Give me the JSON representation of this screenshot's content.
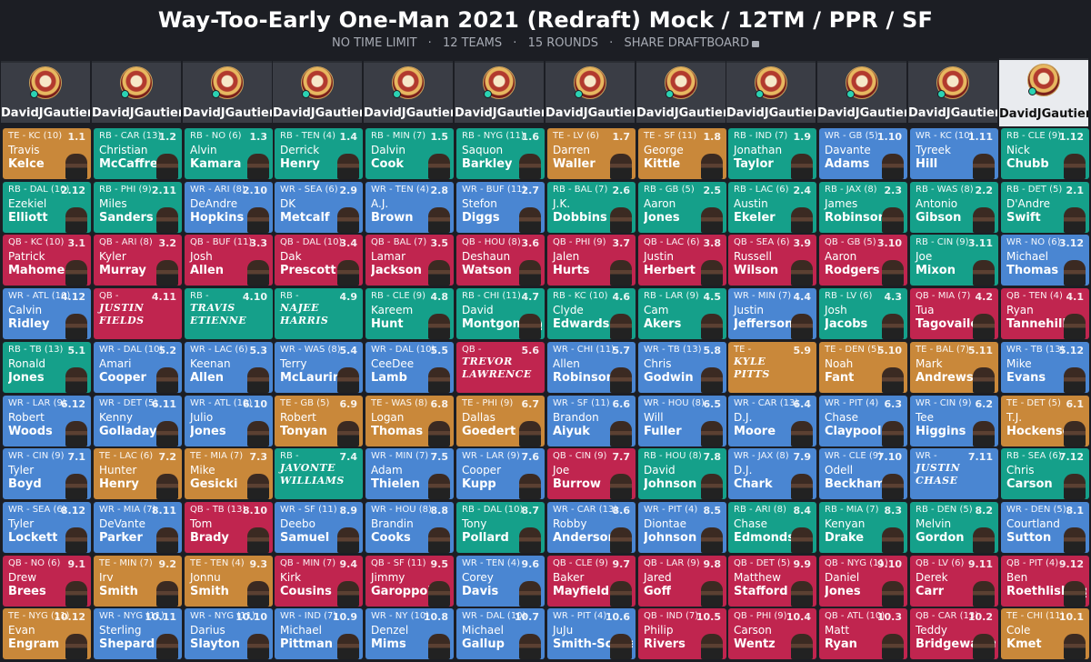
{
  "header": {
    "title": "Way-Too-Early One-Man 2021 (Redraft) Mock / 12TM / PPR / SF",
    "meta": [
      "NO TIME LIMIT",
      "12 TEAMS",
      "15 ROUNDS"
    ],
    "share": "SHARE DRAFTBOARD",
    "separator": "·"
  },
  "teams": [
    "DavidJGautieri",
    "DavidJGautieri",
    "DavidJGautieri",
    "DavidJGautieri",
    "DavidJGautieri",
    "DavidJGautieri",
    "DavidJGautieri",
    "DavidJGautieri",
    "DavidJGautieri",
    "DavidJGautieri",
    "DavidJGautieri",
    "DavidJGautieri"
  ],
  "active_team_index": 11,
  "colors": {
    "QB": "#c0254f",
    "RB": "#15a08a",
    "WR": "#4a86d2",
    "TE": "#c9883a"
  },
  "rows": [
    [
      {
        "pos": "TE",
        "tag": "TE - KC (10)",
        "num": "1.1",
        "first": "Travis",
        "last": "Kelce"
      },
      {
        "pos": "RB",
        "tag": "RB - CAR (13)",
        "num": "1.2",
        "first": "Christian",
        "last": "McCaffrey"
      },
      {
        "pos": "RB",
        "tag": "RB - NO (6)",
        "num": "1.3",
        "first": "Alvin",
        "last": "Kamara"
      },
      {
        "pos": "RB",
        "tag": "RB - TEN (4)",
        "num": "1.4",
        "first": "Derrick",
        "last": "Henry"
      },
      {
        "pos": "RB",
        "tag": "RB - MIN (7)",
        "num": "1.5",
        "first": "Dalvin",
        "last": "Cook"
      },
      {
        "pos": "RB",
        "tag": "RB - NYG (11)",
        "num": "1.6",
        "first": "Saquon",
        "last": "Barkley"
      },
      {
        "pos": "TE",
        "tag": "TE - LV (6)",
        "num": "1.7",
        "first": "Darren",
        "last": "Waller"
      },
      {
        "pos": "TE",
        "tag": "TE - SF (11)",
        "num": "1.8",
        "first": "George",
        "last": "Kittle"
      },
      {
        "pos": "RB",
        "tag": "RB - IND (7)",
        "num": "1.9",
        "first": "Jonathan",
        "last": "Taylor"
      },
      {
        "pos": "WR",
        "tag": "WR - GB (5)",
        "num": "1.10",
        "first": "Davante",
        "last": "Adams"
      },
      {
        "pos": "WR",
        "tag": "WR - KC (10)",
        "num": "1.11",
        "first": "Tyreek",
        "last": "Hill"
      },
      {
        "pos": "RB",
        "tag": "RB - CLE (9)",
        "num": "1.12",
        "first": "Nick",
        "last": "Chubb"
      }
    ],
    [
      {
        "pos": "RB",
        "tag": "RB - DAL (10)",
        "num": "2.12",
        "first": "Ezekiel",
        "last": "Elliott"
      },
      {
        "pos": "RB",
        "tag": "RB - PHI (9)",
        "num": "2.11",
        "first": "Miles",
        "last": "Sanders"
      },
      {
        "pos": "WR",
        "tag": "WR - ARI (8)",
        "num": "2.10",
        "first": "DeAndre",
        "last": "Hopkins"
      },
      {
        "pos": "WR",
        "tag": "WR - SEA (6)",
        "num": "2.9",
        "first": "DK",
        "last": "Metcalf"
      },
      {
        "pos": "WR",
        "tag": "WR - TEN (4)",
        "num": "2.8",
        "first": "A.J.",
        "last": "Brown"
      },
      {
        "pos": "WR",
        "tag": "WR - BUF (11)",
        "num": "2.7",
        "first": "Stefon",
        "last": "Diggs"
      },
      {
        "pos": "RB",
        "tag": "RB - BAL (7)",
        "num": "2.6",
        "first": "J.K.",
        "last": "Dobbins"
      },
      {
        "pos": "RB",
        "tag": "RB - GB (5)",
        "num": "2.5",
        "first": "Aaron",
        "last": "Jones"
      },
      {
        "pos": "RB",
        "tag": "RB - LAC (6)",
        "num": "2.4",
        "first": "Austin",
        "last": "Ekeler"
      },
      {
        "pos": "RB",
        "tag": "RB - JAX (8)",
        "num": "2.3",
        "first": "James",
        "last": "Robinson"
      },
      {
        "pos": "RB",
        "tag": "RB - WAS (8)",
        "num": "2.2",
        "first": "Antonio",
        "last": "Gibson"
      },
      {
        "pos": "RB",
        "tag": "RB - DET (5)",
        "num": "2.1",
        "first": "D'Andre",
        "last": "Swift"
      }
    ],
    [
      {
        "pos": "QB",
        "tag": "QB - KC (10)",
        "num": "3.1",
        "first": "Patrick",
        "last": "Mahomes"
      },
      {
        "pos": "QB",
        "tag": "QB - ARI (8)",
        "num": "3.2",
        "first": "Kyler",
        "last": "Murray"
      },
      {
        "pos": "QB",
        "tag": "QB - BUF (11)",
        "num": "3.3",
        "first": "Josh",
        "last": "Allen"
      },
      {
        "pos": "QB",
        "tag": "QB - DAL (10)",
        "num": "3.4",
        "first": "Dak",
        "last": "Prescott"
      },
      {
        "pos": "QB",
        "tag": "QB - BAL (7)",
        "num": "3.5",
        "first": "Lamar",
        "last": "Jackson"
      },
      {
        "pos": "QB",
        "tag": "QB - HOU (8)",
        "num": "3.6",
        "first": "Deshaun",
        "last": "Watson"
      },
      {
        "pos": "QB",
        "tag": "QB - PHI (9)",
        "num": "3.7",
        "first": "Jalen",
        "last": "Hurts"
      },
      {
        "pos": "QB",
        "tag": "QB - LAC (6)",
        "num": "3.8",
        "first": "Justin",
        "last": "Herbert"
      },
      {
        "pos": "QB",
        "tag": "QB - SEA (6)",
        "num": "3.9",
        "first": "Russell",
        "last": "Wilson"
      },
      {
        "pos": "QB",
        "tag": "QB - GB (5)",
        "num": "3.10",
        "first": "Aaron",
        "last": "Rodgers"
      },
      {
        "pos": "RB",
        "tag": "RB - CIN (9)",
        "num": "3.11",
        "first": "Joe",
        "last": "Mixon"
      },
      {
        "pos": "WR",
        "tag": "WR - NO (6)",
        "num": "3.12",
        "first": "Michael",
        "last": "Thomas"
      }
    ],
    [
      {
        "pos": "WR",
        "tag": "WR - ATL (10)",
        "num": "4.12",
        "first": "Calvin",
        "last": "Ridley"
      },
      {
        "pos": "QB",
        "tag": "QB -",
        "num": "4.11",
        "first": "JUSTIN",
        "last": "FIELDS",
        "rookie": true
      },
      {
        "pos": "RB",
        "tag": "RB -",
        "num": "4.10",
        "first": "TRAVIS",
        "last": "ETIENNE",
        "rookie": true
      },
      {
        "pos": "RB",
        "tag": "RB -",
        "num": "4.9",
        "first": "NAJEE",
        "last": "HARRIS",
        "rookie": true
      },
      {
        "pos": "RB",
        "tag": "RB - CLE (9)",
        "num": "4.8",
        "first": "Kareem",
        "last": "Hunt"
      },
      {
        "pos": "RB",
        "tag": "RB - CHI (11)",
        "num": "4.7",
        "first": "David",
        "last": "Montgomery"
      },
      {
        "pos": "RB",
        "tag": "RB - KC (10)",
        "num": "4.6",
        "first": "Clyde",
        "last": "Edwards-Helaire"
      },
      {
        "pos": "RB",
        "tag": "RB - LAR (9)",
        "num": "4.5",
        "first": "Cam",
        "last": "Akers"
      },
      {
        "pos": "WR",
        "tag": "WR - MIN (7)",
        "num": "4.4",
        "first": "Justin",
        "last": "Jefferson"
      },
      {
        "pos": "RB",
        "tag": "RB - LV (6)",
        "num": "4.3",
        "first": "Josh",
        "last": "Jacobs"
      },
      {
        "pos": "QB",
        "tag": "QB - MIA (7)",
        "num": "4.2",
        "first": "Tua",
        "last": "Tagovailoa"
      },
      {
        "pos": "QB",
        "tag": "QB - TEN (4)",
        "num": "4.1",
        "first": "Ryan",
        "last": "Tannehill"
      }
    ],
    [
      {
        "pos": "RB",
        "tag": "RB - TB (13)",
        "num": "5.1",
        "first": "Ronald",
        "last": "Jones"
      },
      {
        "pos": "WR",
        "tag": "WR - DAL (10)",
        "num": "5.2",
        "first": "Amari",
        "last": "Cooper"
      },
      {
        "pos": "WR",
        "tag": "WR - LAC (6)",
        "num": "5.3",
        "first": "Keenan",
        "last": "Allen"
      },
      {
        "pos": "WR",
        "tag": "WR - WAS (8)",
        "num": "5.4",
        "first": "Terry",
        "last": "McLaurin"
      },
      {
        "pos": "WR",
        "tag": "WR - DAL (10)",
        "num": "5.5",
        "first": "CeeDee",
        "last": "Lamb"
      },
      {
        "pos": "QB",
        "tag": "QB -",
        "num": "5.6",
        "first": "TREVOR",
        "last": "LAWRENCE",
        "rookie": true
      },
      {
        "pos": "WR",
        "tag": "WR - CHI (11)",
        "num": "5.7",
        "first": "Allen",
        "last": "Robinson"
      },
      {
        "pos": "WR",
        "tag": "WR - TB (13)",
        "num": "5.8",
        "first": "Chris",
        "last": "Godwin"
      },
      {
        "pos": "TE",
        "tag": "TE -",
        "num": "5.9",
        "first": "KYLE",
        "last": "PITTS",
        "rookie": true
      },
      {
        "pos": "TE",
        "tag": "TE - DEN (5)",
        "num": "5.10",
        "first": "Noah",
        "last": "Fant"
      },
      {
        "pos": "TE",
        "tag": "TE - BAL (7)",
        "num": "5.11",
        "first": "Mark",
        "last": "Andrews"
      },
      {
        "pos": "WR",
        "tag": "WR - TB (13)",
        "num": "5.12",
        "first": "Mike",
        "last": "Evans"
      }
    ],
    [
      {
        "pos": "WR",
        "tag": "WR - LAR (9)",
        "num": "6.12",
        "first": "Robert",
        "last": "Woods"
      },
      {
        "pos": "WR",
        "tag": "WR - DET (5)",
        "num": "6.11",
        "first": "Kenny",
        "last": "Golladay"
      },
      {
        "pos": "WR",
        "tag": "WR - ATL (10)",
        "num": "6.10",
        "first": "Julio",
        "last": "Jones"
      },
      {
        "pos": "TE",
        "tag": "TE - GB (5)",
        "num": "6.9",
        "first": "Robert",
        "last": "Tonyan"
      },
      {
        "pos": "TE",
        "tag": "TE - WAS (8)",
        "num": "6.8",
        "first": "Logan",
        "last": "Thomas"
      },
      {
        "pos": "TE",
        "tag": "TE - PHI (9)",
        "num": "6.7",
        "first": "Dallas",
        "last": "Goedert"
      },
      {
        "pos": "WR",
        "tag": "WR - SF (11)",
        "num": "6.6",
        "first": "Brandon",
        "last": "Aiyuk"
      },
      {
        "pos": "WR",
        "tag": "WR - HOU (8)",
        "num": "6.5",
        "first": "Will",
        "last": "Fuller"
      },
      {
        "pos": "WR",
        "tag": "WR - CAR (13)",
        "num": "6.4",
        "first": "D.J.",
        "last": "Moore"
      },
      {
        "pos": "WR",
        "tag": "WR - PIT (4)",
        "num": "6.3",
        "first": "Chase",
        "last": "Claypool"
      },
      {
        "pos": "WR",
        "tag": "WR - CIN (9)",
        "num": "6.2",
        "first": "Tee",
        "last": "Higgins"
      },
      {
        "pos": "TE",
        "tag": "TE - DET (5)",
        "num": "6.1",
        "first": "T.J.",
        "last": "Hockenson"
      }
    ],
    [
      {
        "pos": "WR",
        "tag": "WR - CIN (9)",
        "num": "7.1",
        "first": "Tyler",
        "last": "Boyd"
      },
      {
        "pos": "TE",
        "tag": "TE - LAC (6)",
        "num": "7.2",
        "first": "Hunter",
        "last": "Henry"
      },
      {
        "pos": "TE",
        "tag": "TE - MIA (7)",
        "num": "7.3",
        "first": "Mike",
        "last": "Gesicki"
      },
      {
        "pos": "RB",
        "tag": "RB -",
        "num": "7.4",
        "first": "JAVONTE",
        "last": "WILLIAMS",
        "rookie": true
      },
      {
        "pos": "WR",
        "tag": "WR - MIN (7)",
        "num": "7.5",
        "first": "Adam",
        "last": "Thielen"
      },
      {
        "pos": "WR",
        "tag": "WR - LAR (9)",
        "num": "7.6",
        "first": "Cooper",
        "last": "Kupp"
      },
      {
        "pos": "QB",
        "tag": "QB - CIN (9)",
        "num": "7.7",
        "first": "Joe",
        "last": "Burrow"
      },
      {
        "pos": "RB",
        "tag": "RB - HOU (8)",
        "num": "7.8",
        "first": "David",
        "last": "Johnson"
      },
      {
        "pos": "WR",
        "tag": "WR - JAX (8)",
        "num": "7.9",
        "first": "D.J.",
        "last": "Chark"
      },
      {
        "pos": "WR",
        "tag": "WR - CLE (9)",
        "num": "7.10",
        "first": "Odell",
        "last": "Beckham"
      },
      {
        "pos": "WR",
        "tag": "WR -",
        "num": "7.11",
        "first": "JUSTIN",
        "last": "CHASE",
        "rookie": true
      },
      {
        "pos": "RB",
        "tag": "RB - SEA (6)",
        "num": "7.12",
        "first": "Chris",
        "last": "Carson"
      }
    ],
    [
      {
        "pos": "WR",
        "tag": "WR - SEA (6)",
        "num": "8.12",
        "first": "Tyler",
        "last": "Lockett"
      },
      {
        "pos": "WR",
        "tag": "WR - MIA (7)",
        "num": "8.11",
        "first": "DeVante",
        "last": "Parker"
      },
      {
        "pos": "QB",
        "tag": "QB - TB (13)",
        "num": "8.10",
        "first": "Tom",
        "last": "Brady"
      },
      {
        "pos": "WR",
        "tag": "WR - SF (11)",
        "num": "8.9",
        "first": "Deebo",
        "last": "Samuel"
      },
      {
        "pos": "WR",
        "tag": "WR - HOU (8)",
        "num": "8.8",
        "first": "Brandin",
        "last": "Cooks"
      },
      {
        "pos": "RB",
        "tag": "RB - DAL (10)",
        "num": "8.7",
        "first": "Tony",
        "last": "Pollard"
      },
      {
        "pos": "WR",
        "tag": "WR - CAR (13)",
        "num": "8.6",
        "first": "Robby",
        "last": "Anderson"
      },
      {
        "pos": "WR",
        "tag": "WR - PIT (4)",
        "num": "8.5",
        "first": "Diontae",
        "last": "Johnson"
      },
      {
        "pos": "RB",
        "tag": "RB - ARI (8)",
        "num": "8.4",
        "first": "Chase",
        "last": "Edmonds"
      },
      {
        "pos": "RB",
        "tag": "RB - MIA (7)",
        "num": "8.3",
        "first": "Kenyan",
        "last": "Drake"
      },
      {
        "pos": "RB",
        "tag": "RB - DEN (5)",
        "num": "8.2",
        "first": "Melvin",
        "last": "Gordon"
      },
      {
        "pos": "WR",
        "tag": "WR - DEN (5)",
        "num": "8.1",
        "first": "Courtland",
        "last": "Sutton"
      }
    ],
    [
      {
        "pos": "QB",
        "tag": "QB - NO (6)",
        "num": "9.1",
        "first": "Drew",
        "last": "Brees"
      },
      {
        "pos": "TE",
        "tag": "TE - MIN (7)",
        "num": "9.2",
        "first": "Irv",
        "last": "Smith"
      },
      {
        "pos": "TE",
        "tag": "TE - TEN (4)",
        "num": "9.3",
        "first": "Jonnu",
        "last": "Smith"
      },
      {
        "pos": "QB",
        "tag": "QB - MIN (7)",
        "num": "9.4",
        "first": "Kirk",
        "last": "Cousins"
      },
      {
        "pos": "QB",
        "tag": "QB - SF (11)",
        "num": "9.5",
        "first": "Jimmy",
        "last": "Garoppolo"
      },
      {
        "pos": "WR",
        "tag": "WR - TEN (4)",
        "num": "9.6",
        "first": "Corey",
        "last": "Davis"
      },
      {
        "pos": "QB",
        "tag": "QB - CLE (9)",
        "num": "9.7",
        "first": "Baker",
        "last": "Mayfield"
      },
      {
        "pos": "QB",
        "tag": "QB - LAR (9)",
        "num": "9.8",
        "first": "Jared",
        "last": "Goff"
      },
      {
        "pos": "QB",
        "tag": "QB - DET (5)",
        "num": "9.9",
        "first": "Matthew",
        "last": "Stafford"
      },
      {
        "pos": "QB",
        "tag": "QB - NYG (11)",
        "num": "9.10",
        "first": "Daniel",
        "last": "Jones"
      },
      {
        "pos": "QB",
        "tag": "QB - LV (6)",
        "num": "9.11",
        "first": "Derek",
        "last": "Carr"
      },
      {
        "pos": "QB",
        "tag": "QB - PIT (4)",
        "num": "9.12",
        "first": "Ben",
        "last": "Roethlisberger"
      }
    ],
    [
      {
        "pos": "TE",
        "tag": "TE - NYG (11)",
        "num": "10.12",
        "first": "Evan",
        "last": "Engram"
      },
      {
        "pos": "WR",
        "tag": "WR - NYG (11)",
        "num": "10.11",
        "first": "Sterling",
        "last": "Shepard"
      },
      {
        "pos": "WR",
        "tag": "WR - NYG (11)",
        "num": "10.10",
        "first": "Darius",
        "last": "Slayton"
      },
      {
        "pos": "WR",
        "tag": "WR - IND (7)",
        "num": "10.9",
        "first": "Michael",
        "last": "Pittman"
      },
      {
        "pos": "WR",
        "tag": "WR - NY (10)",
        "num": "10.8",
        "first": "Denzel",
        "last": "Mims"
      },
      {
        "pos": "WR",
        "tag": "WR - DAL (10)",
        "num": "10.7",
        "first": "Michael",
        "last": "Gallup"
      },
      {
        "pos": "WR",
        "tag": "WR - PIT (4)",
        "num": "10.6",
        "first": "JuJu",
        "last": "Smith-Schuster"
      },
      {
        "pos": "QB",
        "tag": "QB - IND (7)",
        "num": "10.5",
        "first": "Philip",
        "last": "Rivers"
      },
      {
        "pos": "QB",
        "tag": "QB - PHI (9)",
        "num": "10.4",
        "first": "Carson",
        "last": "Wentz"
      },
      {
        "pos": "QB",
        "tag": "QB - ATL (10)",
        "num": "10.3",
        "first": "Matt",
        "last": "Ryan"
      },
      {
        "pos": "QB",
        "tag": "QB - CAR (13)",
        "num": "10.2",
        "first": "Teddy",
        "last": "Bridgewater"
      },
      {
        "pos": "TE",
        "tag": "TE - CHI (11)",
        "num": "10.1",
        "first": "Cole",
        "last": "Kmet"
      }
    ]
  ]
}
